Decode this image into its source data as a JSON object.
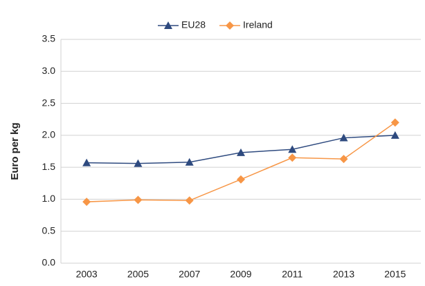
{
  "chart_data": {
    "type": "line",
    "y_label": "Euro per kg",
    "categories": [
      "2003",
      "2005",
      "2007",
      "2009",
      "2011",
      "2013",
      "2015"
    ],
    "series": [
      {
        "name": "EU28",
        "color": "#2e4a7f",
        "marker": "triangle",
        "values": [
          1.57,
          1.56,
          1.58,
          1.73,
          1.78,
          1.96,
          2.0
        ]
      },
      {
        "name": "Ireland",
        "color": "#f79646",
        "marker": "diamond",
        "values": [
          0.96,
          0.99,
          0.98,
          1.31,
          1.65,
          1.63,
          2.2
        ]
      }
    ],
    "ylim": [
      0,
      3.5
    ],
    "yticks": [
      {
        "value": 0,
        "label": "0.0"
      },
      0.5,
      {
        "value": 1,
        "label": "1.0"
      },
      1.5,
      {
        "value": 2,
        "label": "2.0"
      },
      2.5,
      {
        "value": 3,
        "label": "3.0"
      },
      3.5
    ],
    "grid": true,
    "legend": "top"
  }
}
